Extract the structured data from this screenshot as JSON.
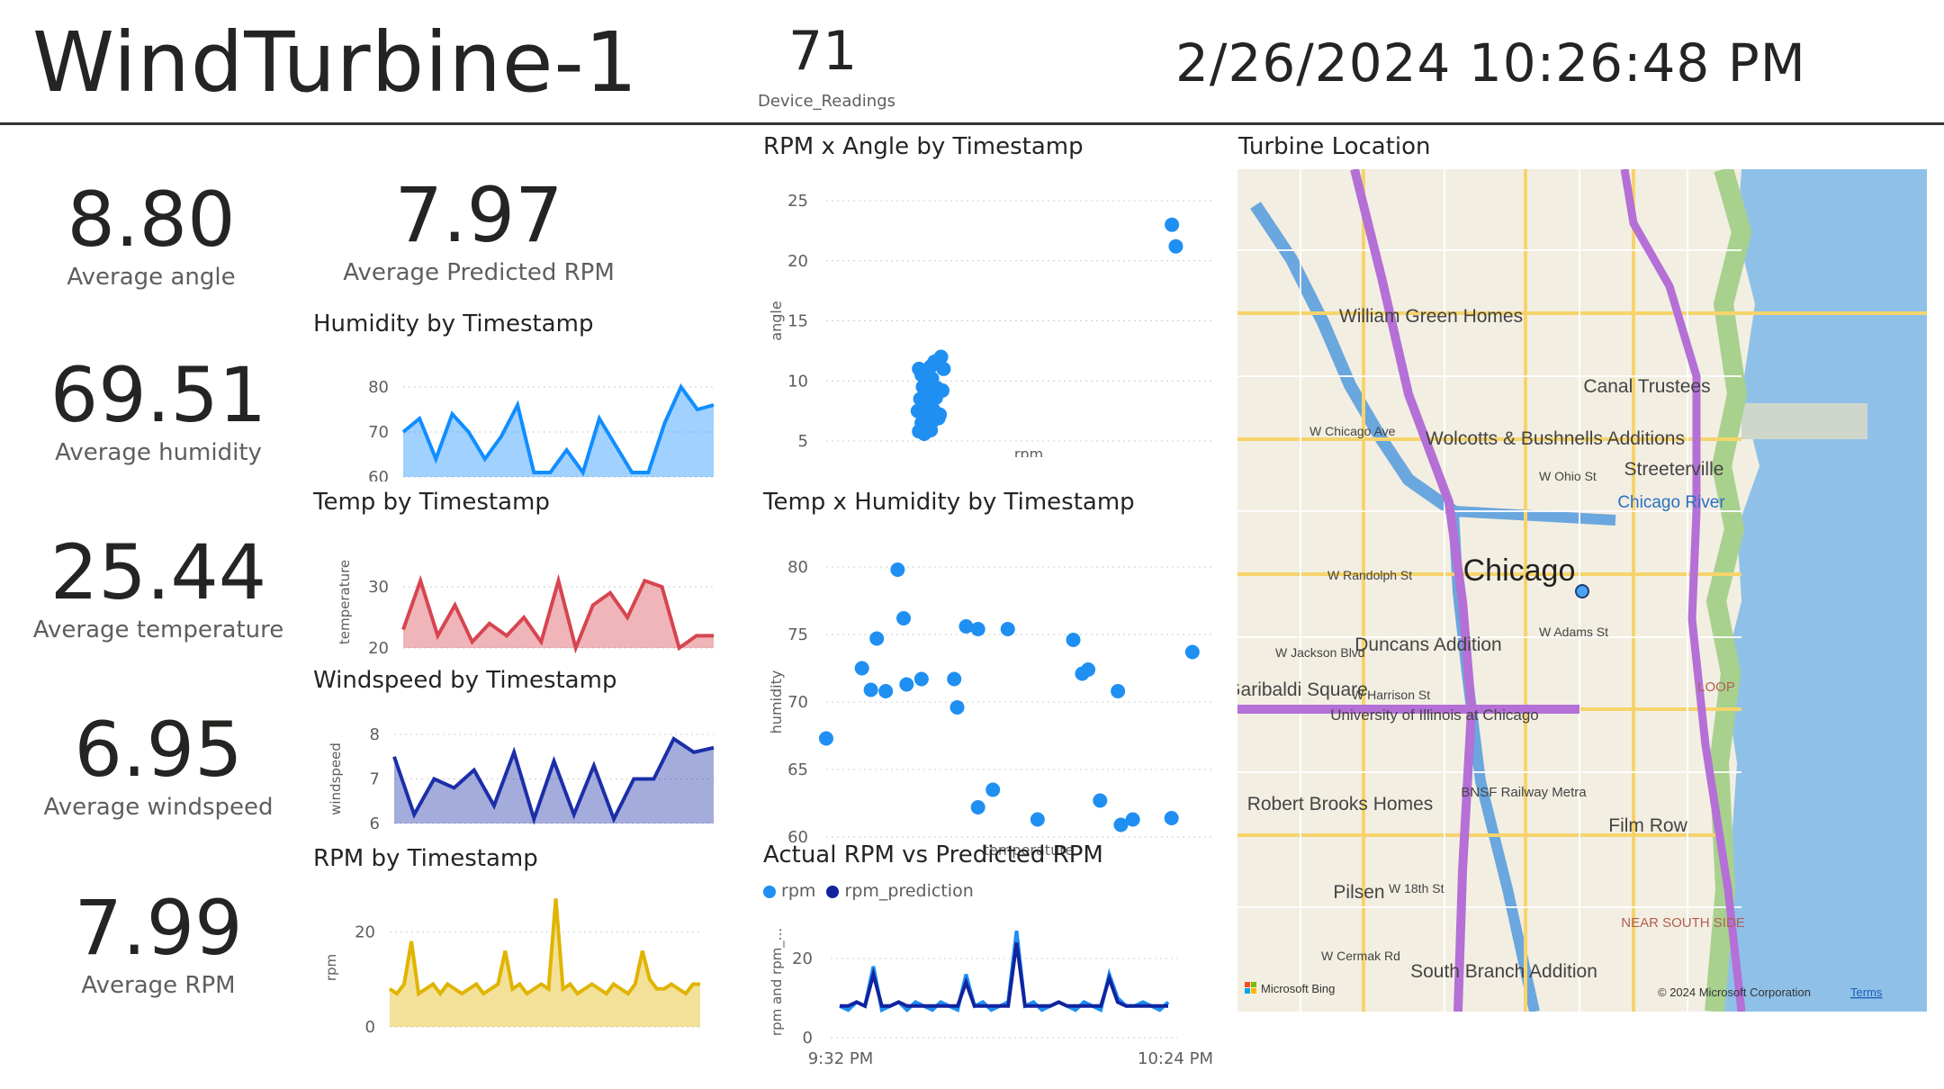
{
  "header": {
    "title": "WindTurbine-1",
    "device_count": "71",
    "device_count_label": "Device_Readings",
    "datetime": "2/26/2024 10:26:48 PM"
  },
  "kpis": [
    {
      "value": "8.80",
      "label": "Average angle"
    },
    {
      "value": "69.51",
      "label": "Average humidity"
    },
    {
      "value": "25.44",
      "label": "Average temperature"
    },
    {
      "value": "6.95",
      "label": "Average windspeed"
    },
    {
      "value": "7.99",
      "label": "Average RPM"
    }
  ],
  "predicted_kpi": {
    "value": "7.97",
    "label": "Average Predicted RPM"
  },
  "colors": {
    "humidity": "#118dff",
    "temperature": "#d64550",
    "windspeed": "#1c2fa8",
    "rpm": "#e0b400",
    "scatter": "#1f8ff2",
    "rpm_prediction": "#12239e"
  },
  "map": {
    "title": "Turbine Location",
    "labels": [
      "William Green Homes",
      "Canal Trustees",
      "Wolcotts & Bushnells Additions",
      "Streeterville",
      "Chicago River",
      "Chicago",
      "Duncans Addition",
      "Garibaldi Square",
      "University of Illinois at Chicago",
      "Robert Brooks Homes",
      "BNSF Railway Metra",
      "Film Row",
      "Pilsen",
      "NEAR SOUTH SIDE",
      "South Branch Addition",
      "LOOP",
      "W Chicago Ave",
      "W Randolph St",
      "W Jackson Blvd",
      "W Harrison St",
      "W Ohio St",
      "W Adams St",
      "W 18th St",
      "W Cermak Rd"
    ],
    "attribution": "Microsoft Bing",
    "copyright": "© 2024 Microsoft Corporation",
    "terms": "Terms"
  },
  "chart_data": [
    {
      "type": "area",
      "title": "Humidity by Timestamp",
      "xlabel": "",
      "ylabel": "",
      "ylim": [
        60,
        80
      ],
      "yticks": [
        "80",
        "70",
        "60"
      ],
      "values": [
        70,
        73,
        64,
        74,
        70,
        64,
        69,
        76,
        61,
        61,
        66,
        61,
        73,
        67,
        61,
        61,
        72,
        80,
        75,
        76
      ]
    },
    {
      "type": "area",
      "title": "Temp by Timestamp",
      "xlabel": "",
      "ylabel": "temperature",
      "ylim": [
        20,
        35
      ],
      "yticks": [
        "30",
        "20"
      ],
      "values": [
        23,
        31,
        22,
        27,
        21,
        24,
        22,
        25,
        21,
        31,
        20,
        27,
        29,
        25,
        31,
        30,
        20,
        22,
        22
      ]
    },
    {
      "type": "area",
      "title": "Windspeed by Timestamp",
      "xlabel": "",
      "ylabel": "windspeed",
      "ylim": [
        6,
        8
      ],
      "yticks": [
        "8",
        "7",
        "6"
      ],
      "values": [
        7.5,
        6.2,
        7.0,
        6.8,
        7.2,
        6.4,
        7.6,
        6.1,
        7.4,
        6.2,
        7.3,
        6.1,
        7.0,
        7.0,
        7.9,
        7.6,
        7.7
      ]
    },
    {
      "type": "area",
      "title": "RPM by Timestamp",
      "xlabel": "",
      "ylabel": "rpm",
      "ylim": [
        0,
        25
      ],
      "yticks": [
        "20",
        "0"
      ],
      "values": [
        8,
        7,
        9,
        18,
        7,
        8,
        9,
        7,
        9,
        8,
        7,
        8,
        9,
        7,
        8,
        9,
        16,
        8,
        9,
        7,
        8,
        9,
        8,
        27,
        8,
        9,
        7,
        8,
        9,
        8,
        7,
        9,
        8,
        7,
        9,
        16,
        10,
        8,
        8,
        9,
        8,
        7,
        9,
        9
      ]
    },
    {
      "type": "scatter",
      "title": "RPM x Angle by Timestamp",
      "xlabel": "rpm",
      "ylabel": "angle",
      "ylim": [
        5,
        25
      ],
      "yticks": [
        "25",
        "20",
        "15",
        "10",
        "5"
      ],
      "points": [
        [
          7.2,
          11
        ],
        [
          7.4,
          10.5
        ],
        [
          7.8,
          10.8
        ],
        [
          8.1,
          11.2
        ],
        [
          8.4,
          11.6
        ],
        [
          8.9,
          12
        ],
        [
          9.1,
          11
        ],
        [
          7.5,
          9.5
        ],
        [
          7.9,
          9.8
        ],
        [
          8.2,
          10.2
        ],
        [
          8.6,
          9.4
        ],
        [
          7.3,
          8.5
        ],
        [
          7.7,
          8.8
        ],
        [
          8.0,
          9
        ],
        [
          8.5,
          8.6
        ],
        [
          9.0,
          9.2
        ],
        [
          7.1,
          7.5
        ],
        [
          7.6,
          7.8
        ],
        [
          7.9,
          8.1
        ],
        [
          8.3,
          7.6
        ],
        [
          8.8,
          7.2
        ],
        [
          7.4,
          6.5
        ],
        [
          7.8,
          6.8
        ],
        [
          8.2,
          6.6
        ],
        [
          8.7,
          6.9
        ],
        [
          7.2,
          5.8
        ],
        [
          7.6,
          5.6
        ],
        [
          8.1,
          5.9
        ],
        [
          26.8,
          23
        ],
        [
          27.1,
          21.2
        ]
      ]
    },
    {
      "type": "scatter",
      "title": "Temp x Humidity by Timestamp",
      "xlabel": "temperature",
      "ylabel": "humidity",
      "ylim": [
        60,
        80
      ],
      "yticks": [
        "80",
        "75",
        "70",
        "65",
        "60"
      ],
      "points": [
        [
          20,
          67.3
        ],
        [
          21.2,
          72.5
        ],
        [
          21.5,
          70.9
        ],
        [
          21.7,
          74.7
        ],
        [
          22,
          70.8
        ],
        [
          22.4,
          79.8
        ],
        [
          22.6,
          76.2
        ],
        [
          22.7,
          71.3
        ],
        [
          23.2,
          71.7
        ],
        [
          24.3,
          71.7
        ],
        [
          24.4,
          69.6
        ],
        [
          24.7,
          75.6
        ],
        [
          25.1,
          75.4
        ],
        [
          25.6,
          63.5
        ],
        [
          25.1,
          62.2
        ],
        [
          26.1,
          75.4
        ],
        [
          27.1,
          61.3
        ],
        [
          28.3,
          74.6
        ],
        [
          28.6,
          72.1
        ],
        [
          28.8,
          72.4
        ],
        [
          29.2,
          62.7
        ],
        [
          29.8,
          70.8
        ],
        [
          29.9,
          60.9
        ],
        [
          30.3,
          61.3
        ],
        [
          31.6,
          61.4
        ],
        [
          32.3,
          73.7
        ]
      ]
    },
    {
      "type": "line",
      "title": "Actual RPM vs Predicted RPM",
      "xlabel": "",
      "ylabel": "rpm and rpm_...",
      "ylim": [
        0,
        30
      ],
      "yticks": [
        "20",
        "0"
      ],
      "x_ticks": [
        "9:32 PM",
        "10:24 PM"
      ],
      "series": [
        {
          "name": "rpm",
          "values": [
            8,
            7,
            9,
            8,
            18,
            7,
            8,
            9,
            7,
            9,
            8,
            7,
            9,
            8,
            7,
            16,
            8,
            9,
            7,
            8,
            9,
            27,
            8,
            9,
            7,
            8,
            9,
            8,
            7,
            9,
            8,
            7,
            16,
            10,
            8,
            8,
            9,
            8,
            7,
            9
          ]
        },
        {
          "name": "rpm_prediction",
          "values": [
            8,
            8,
            9,
            8,
            16,
            8,
            8,
            9,
            8,
            8,
            8,
            8,
            8,
            8,
            8,
            14,
            8,
            8,
            8,
            8,
            8,
            24,
            8,
            8,
            8,
            8,
            9,
            8,
            8,
            8,
            8,
            8,
            15,
            9,
            8,
            8,
            8,
            8,
            8,
            8
          ]
        }
      ]
    }
  ]
}
